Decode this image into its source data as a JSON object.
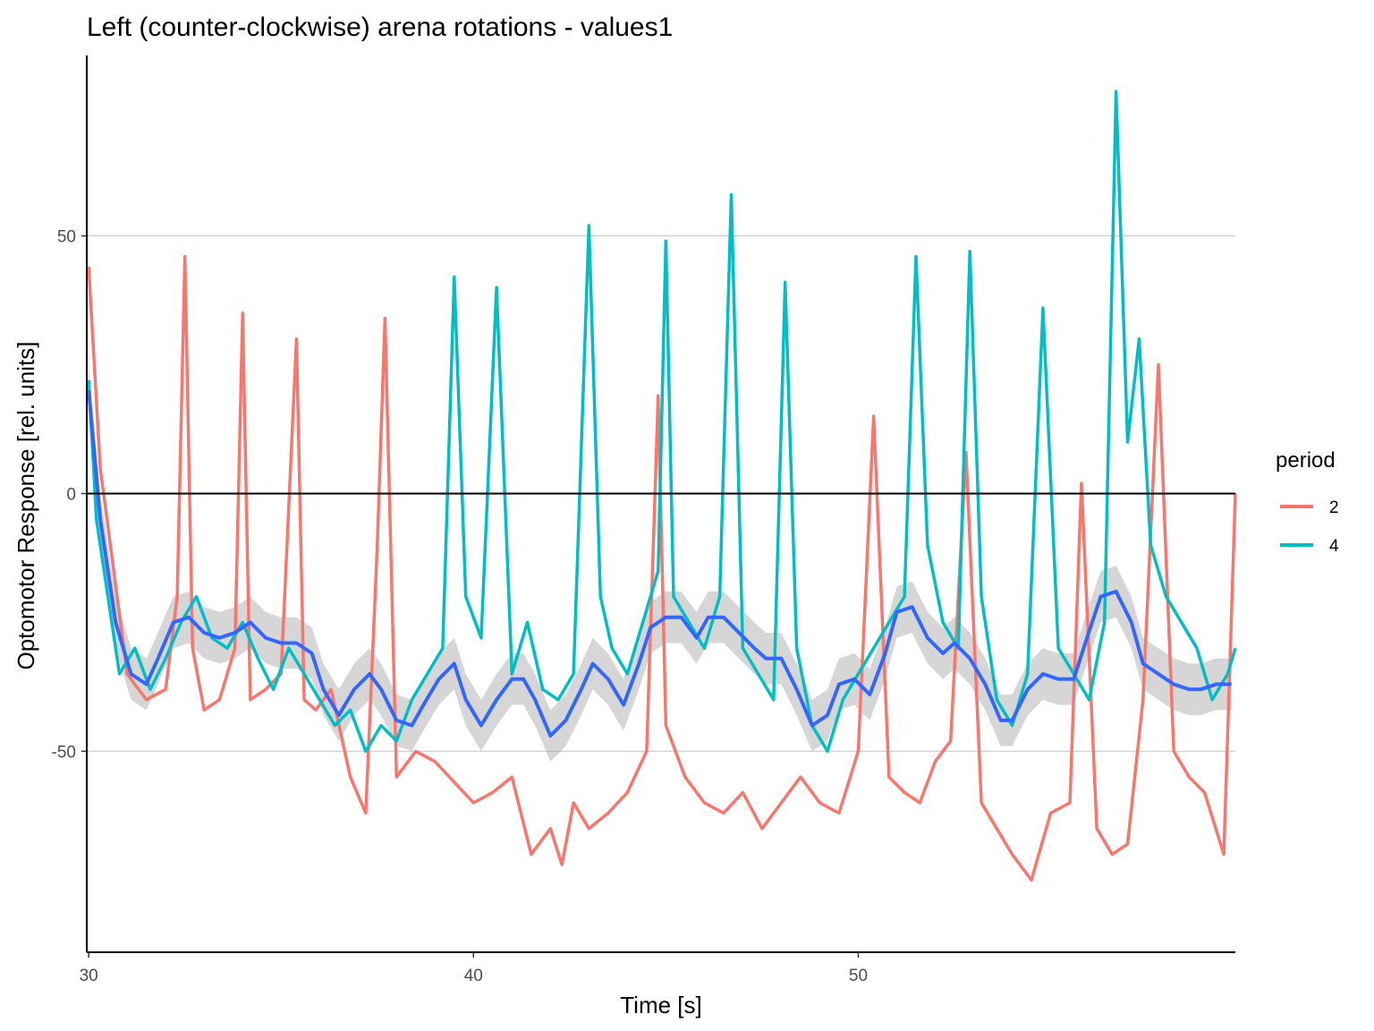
{
  "chart_data": {
    "type": "line",
    "title": "Left (counter-clockwise) arena rotations - values1",
    "xlabel": "Time [s]",
    "ylabel": "Optomotor Response [rel. units]",
    "xlim": [
      29.95,
      59.8
    ],
    "ylim": [
      -89,
      85
    ],
    "x_ticks": [
      30,
      40,
      50
    ],
    "y_ticks": [
      -50,
      0,
      50
    ],
    "grid": "horizontal major",
    "zero_line": true,
    "legend": {
      "title": "period",
      "placement": "right"
    },
    "series": [
      {
        "name": "2",
        "color": "#F8766D",
        "x": [
          30.0,
          30.3,
          30.6,
          31.0,
          31.5,
          32.0,
          32.3,
          32.5,
          32.7,
          33.0,
          33.4,
          33.8,
          34.0,
          34.2,
          34.6,
          35.0,
          35.4,
          35.6,
          35.9,
          36.3,
          36.8,
          37.2,
          37.5,
          37.7,
          38.0,
          38.5,
          39.0,
          39.5,
          40.0,
          40.5,
          41.0,
          41.5,
          42.0,
          42.3,
          42.6,
          43.0,
          43.5,
          44.0,
          44.5,
          44.8,
          45.0,
          45.5,
          46.0,
          46.5,
          47.0,
          47.5,
          48.0,
          48.5,
          49.0,
          49.5,
          50.0,
          50.4,
          50.8,
          51.2,
          51.6,
          52.0,
          52.4,
          52.8,
          53.2,
          53.6,
          54.0,
          54.5,
          55.0,
          55.5,
          55.8,
          56.2,
          56.6,
          57.0,
          57.4,
          57.8,
          58.2,
          58.6,
          59.0,
          59.5,
          59.8
        ],
        "y": [
          44,
          5,
          -12,
          -35,
          -40,
          -38,
          -20,
          46,
          -30,
          -42,
          -40,
          -30,
          35,
          -40,
          -38,
          -35,
          30,
          -40,
          -42,
          -38,
          -55,
          -62,
          -10,
          34,
          -55,
          -50,
          -52,
          -56,
          -60,
          -58,
          -55,
          -70,
          -65,
          -72,
          -60,
          -65,
          -62,
          -58,
          -50,
          19,
          -45,
          -55,
          -60,
          -62,
          -58,
          -65,
          -60,
          -55,
          -60,
          -62,
          -50,
          15,
          -55,
          -58,
          -60,
          -52,
          -48,
          8,
          -60,
          -65,
          -70,
          -75,
          -62,
          -60,
          2,
          -65,
          -70,
          -68,
          -40,
          25,
          -50,
          -55,
          -58,
          -70,
          0
        ]
      },
      {
        "name": "4",
        "color": "#00BFC4",
        "x": [
          30.0,
          30.2,
          30.5,
          30.8,
          31.2,
          31.6,
          32.0,
          32.4,
          32.8,
          33.2,
          33.6,
          34.0,
          34.4,
          34.8,
          35.2,
          35.6,
          36.0,
          36.4,
          36.8,
          37.2,
          37.6,
          38.0,
          38.4,
          38.8,
          39.2,
          39.5,
          39.8,
          40.2,
          40.6,
          41.0,
          41.2,
          41.4,
          41.8,
          42.2,
          42.6,
          43.0,
          43.3,
          43.6,
          44.0,
          44.4,
          44.8,
          45.0,
          45.2,
          45.6,
          46.0,
          46.4,
          46.7,
          47.0,
          47.4,
          47.8,
          48.1,
          48.4,
          48.8,
          49.2,
          49.6,
          50.0,
          50.4,
          50.8,
          51.2,
          51.5,
          51.8,
          52.2,
          52.6,
          52.9,
          53.2,
          53.6,
          54.0,
          54.4,
          54.8,
          55.2,
          55.6,
          56.0,
          56.4,
          56.7,
          57.0,
          57.3,
          57.6,
          58.0,
          58.4,
          58.8,
          59.2,
          59.6,
          59.8
        ],
        "y": [
          22,
          -5,
          -20,
          -35,
          -30,
          -38,
          -32,
          -25,
          -20,
          -28,
          -30,
          -25,
          -32,
          -38,
          -30,
          -35,
          -40,
          -45,
          -42,
          -50,
          -45,
          -48,
          -40,
          -35,
          -30,
          42,
          -20,
          -28,
          40,
          -35,
          -30,
          -25,
          -38,
          -40,
          -35,
          52,
          -20,
          -30,
          -35,
          -25,
          -15,
          49,
          -20,
          -25,
          -30,
          -20,
          58,
          -30,
          -35,
          -40,
          41,
          -30,
          -45,
          -50,
          -40,
          -35,
          -30,
          -25,
          -20,
          46,
          -10,
          -25,
          -30,
          47,
          -20,
          -40,
          -45,
          -35,
          36,
          -30,
          -35,
          -40,
          -25,
          78,
          10,
          30,
          -10,
          -20,
          -25,
          -30,
          -40,
          -35,
          -30
        ]
      },
      {
        "name": "",
        "color": "#3366FF",
        "x": [
          30.0,
          30.3,
          30.7,
          31.1,
          31.5,
          31.8,
          32.2,
          32.6,
          33.0,
          33.4,
          33.8,
          34.2,
          34.6,
          35.0,
          35.4,
          35.8,
          36.1,
          36.5,
          36.9,
          37.3,
          37.6,
          38.0,
          38.4,
          38.7,
          39.1,
          39.5,
          39.8,
          40.2,
          40.6,
          41.0,
          41.3,
          41.6,
          42.0,
          42.4,
          42.8,
          43.1,
          43.5,
          43.9,
          44.3,
          44.6,
          45.0,
          45.4,
          45.8,
          46.1,
          46.5,
          46.9,
          47.3,
          47.6,
          48.0,
          48.4,
          48.8,
          49.2,
          49.5,
          49.9,
          50.3,
          50.7,
          51.0,
          51.4,
          51.8,
          52.2,
          52.5,
          52.9,
          53.3,
          53.7,
          54.0,
          54.4,
          54.8,
          55.2,
          55.6,
          55.9,
          56.3,
          56.7,
          57.1,
          57.4,
          57.8,
          58.2,
          58.6,
          58.9,
          59.3,
          59.7
        ],
        "y": [
          20,
          -5,
          -25,
          -35,
          -37,
          -32,
          -25,
          -24,
          -27,
          -28,
          -27,
          -25,
          -28,
          -29,
          -29,
          -31,
          -38,
          -43,
          -38,
          -35,
          -38,
          -44,
          -45,
          -41,
          -36,
          -33,
          -40,
          -45,
          -40,
          -36,
          -36,
          -40,
          -47,
          -44,
          -38,
          -33,
          -36,
          -41,
          -33,
          -26,
          -24,
          -24,
          -28,
          -24,
          -24,
          -27,
          -30,
          -32,
          -32,
          -38,
          -45,
          -43,
          -37,
          -36,
          -39,
          -31,
          -23,
          -22,
          -28,
          -31,
          -29,
          -32,
          -37,
          -44,
          -44,
          -38,
          -35,
          -36,
          -36,
          -29,
          -20,
          -19,
          -25,
          -33,
          -35,
          -37,
          -38,
          -38,
          -37,
          -37
        ]
      }
    ]
  }
}
